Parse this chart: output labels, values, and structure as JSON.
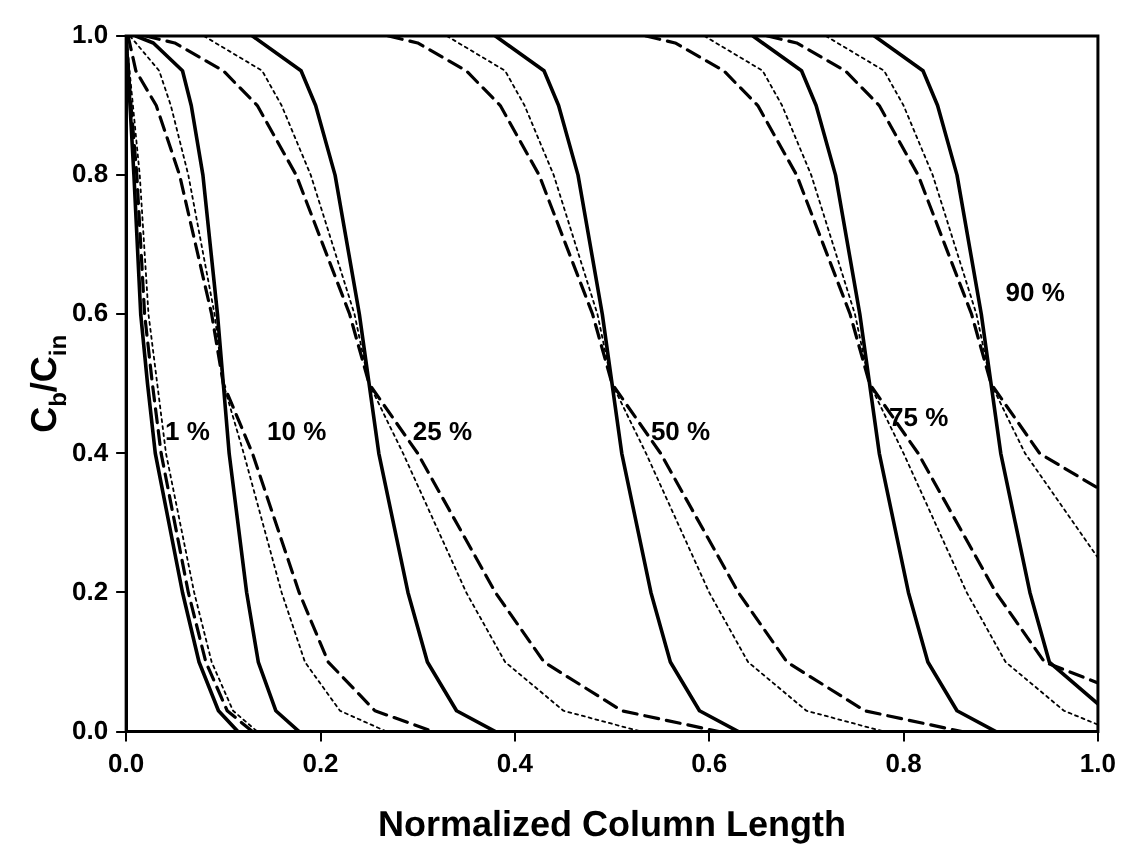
{
  "chart_data": {
    "type": "line",
    "xlabel": "Normalized Column Length",
    "ylabel": "C$_{b}$/C$_{in}$",
    "xlim": [
      0,
      1
    ],
    "ylim": [
      0,
      1
    ],
    "xticks": [
      {
        "value": 0,
        "label": "0.0"
      },
      {
        "value": 0.2,
        "label": "0.2"
      },
      {
        "value": 0.4,
        "label": "0.4"
      },
      {
        "value": 0.6,
        "label": "0.6"
      },
      {
        "value": 0.8,
        "label": "0.8"
      },
      {
        "value": 1,
        "label": "1.0"
      }
    ],
    "yticks": [
      {
        "value": 0,
        "label": "0.0"
      },
      {
        "value": 0.2,
        "label": "0.2"
      },
      {
        "value": 0.4,
        "label": "0.4"
      },
      {
        "value": 0.6,
        "label": "0.6"
      },
      {
        "value": 0.8,
        "label": "0.8"
      },
      {
        "value": 1,
        "label": "1.0"
      }
    ],
    "series": [
      {
        "color": "#000000",
        "line_style": "solid",
        "x": [
          0,
          0.004,
          0.008,
          0.015,
          0.022,
          0.03,
          0.058,
          0.075,
          0.095,
          0.115
        ],
        "values": [
          1,
          0.9,
          0.8,
          0.6,
          0.5,
          0.4,
          0.2,
          0.1,
          0.03,
          0
        ]
      },
      {
        "color": "#000000",
        "line_style": "dashed",
        "x": [
          0,
          0.005,
          0.011,
          0.019,
          0.027,
          0.036,
          0.064,
          0.082,
          0.104,
          0.13
        ],
        "values": [
          1,
          0.9,
          0.8,
          0.6,
          0.5,
          0.4,
          0.2,
          0.1,
          0.03,
          0
        ]
      },
      {
        "color": "#000000",
        "line_style": "dotted",
        "x": [
          0,
          0.007,
          0.014,
          0.023,
          0.032,
          0.041,
          0.07,
          0.088,
          0.11,
          0.135
        ],
        "values": [
          1,
          0.9,
          0.8,
          0.6,
          0.5,
          0.4,
          0.2,
          0.1,
          0.03,
          0
        ]
      },
      {
        "color": "#000000",
        "line_style": "solid",
        "x": [
          0.01,
          0.028,
          0.058,
          0.067,
          0.079,
          0.094,
          0.1,
          0.106,
          0.124,
          0.136,
          0.154,
          0.178
        ],
        "values": [
          1,
          0.99,
          0.95,
          0.9,
          0.8,
          0.6,
          0.5,
          0.4,
          0.2,
          0.1,
          0.03,
          0
        ]
      },
      {
        "color": "#000000",
        "line_style": "dashed",
        "x": [
          0.002,
          0.01,
          0.031,
          0.055,
          0.088,
          0.1,
          0.13,
          0.178,
          0.208,
          0.256,
          0.316
        ],
        "values": [
          1,
          0.95,
          0.9,
          0.8,
          0.6,
          0.5,
          0.4,
          0.2,
          0.1,
          0.03,
          0
        ]
      },
      {
        "color": "#000000",
        "line_style": "dotted",
        "x": [
          0.004,
          0.034,
          0.046,
          0.064,
          0.091,
          0.1,
          0.121,
          0.16,
          0.184,
          0.22,
          0.268
        ],
        "values": [
          1,
          0.95,
          0.9,
          0.8,
          0.6,
          0.5,
          0.4,
          0.2,
          0.1,
          0.03,
          0
        ]
      },
      {
        "color": "#000000",
        "line_style": "solid",
        "x": [
          0.13,
          0.18,
          0.195,
          0.215,
          0.24,
          0.25,
          0.26,
          0.29,
          0.31,
          0.34,
          0.38
        ],
        "values": [
          1,
          0.95,
          0.9,
          0.8,
          0.6,
          0.5,
          0.4,
          0.2,
          0.1,
          0.03,
          0
        ]
      },
      {
        "color": "#000000",
        "line_style": "dashed",
        "x": [
          0.02,
          0.05,
          0.1,
          0.135,
          0.175,
          0.23,
          0.25,
          0.3,
          0.38,
          0.43,
          0.51,
          0.61
        ],
        "values": [
          1,
          0.99,
          0.95,
          0.9,
          0.8,
          0.6,
          0.5,
          0.4,
          0.2,
          0.1,
          0.03,
          0
        ]
      },
      {
        "color": "#000000",
        "line_style": "dotted",
        "x": [
          0.08,
          0.14,
          0.16,
          0.19,
          0.235,
          0.25,
          0.285,
          0.35,
          0.39,
          0.45,
          0.53
        ],
        "values": [
          1,
          0.95,
          0.9,
          0.8,
          0.6,
          0.5,
          0.4,
          0.2,
          0.1,
          0.03,
          0
        ]
      },
      {
        "color": "#000000",
        "line_style": "solid",
        "x": [
          0.38,
          0.43,
          0.445,
          0.465,
          0.49,
          0.5,
          0.51,
          0.54,
          0.56,
          0.59,
          0.63
        ],
        "values": [
          1,
          0.95,
          0.9,
          0.8,
          0.6,
          0.5,
          0.4,
          0.2,
          0.1,
          0.03,
          0
        ]
      },
      {
        "color": "#000000",
        "line_style": "dashed",
        "x": [
          0.27,
          0.3,
          0.35,
          0.385,
          0.425,
          0.48,
          0.5,
          0.55,
          0.63,
          0.68,
          0.76,
          0.86
        ],
        "values": [
          1,
          0.99,
          0.95,
          0.9,
          0.8,
          0.6,
          0.5,
          0.4,
          0.2,
          0.1,
          0.03,
          0
        ]
      },
      {
        "color": "#000000",
        "line_style": "dotted",
        "x": [
          0.33,
          0.39,
          0.41,
          0.44,
          0.485,
          0.5,
          0.535,
          0.6,
          0.64,
          0.7,
          0.78
        ],
        "values": [
          1,
          0.95,
          0.9,
          0.8,
          0.6,
          0.5,
          0.4,
          0.2,
          0.1,
          0.03,
          0
        ]
      },
      {
        "color": "#000000",
        "line_style": "solid",
        "x": [
          0.645,
          0.695,
          0.71,
          0.73,
          0.755,
          0.765,
          0.775,
          0.805,
          0.825,
          0.855,
          0.895
        ],
        "values": [
          1,
          0.95,
          0.9,
          0.8,
          0.6,
          0.5,
          0.4,
          0.2,
          0.1,
          0.03,
          0
        ]
      },
      {
        "color": "#000000",
        "line_style": "dashed",
        "x": [
          0.535,
          0.565,
          0.615,
          0.65,
          0.69,
          0.745,
          0.765,
          0.815,
          0.895,
          0.945,
          1
        ],
        "values": [
          1,
          0.99,
          0.95,
          0.9,
          0.8,
          0.6,
          0.5,
          0.4,
          0.2,
          0.1,
          0.07
        ]
      },
      {
        "color": "#000000",
        "line_style": "dotted",
        "x": [
          0.595,
          0.655,
          0.675,
          0.705,
          0.75,
          0.765,
          0.8,
          0.865,
          0.905,
          0.965,
          1
        ],
        "values": [
          1,
          0.95,
          0.9,
          0.8,
          0.6,
          0.5,
          0.4,
          0.2,
          0.1,
          0.03,
          0.01
        ]
      },
      {
        "color": "#000000",
        "line_style": "solid",
        "x": [
          0.77,
          0.82,
          0.835,
          0.855,
          0.88,
          0.89,
          0.9,
          0.93,
          0.95,
          1
        ],
        "values": [
          1,
          0.95,
          0.9,
          0.8,
          0.6,
          0.5,
          0.4,
          0.2,
          0.1,
          0.04
        ]
      },
      {
        "color": "#000000",
        "line_style": "dashed",
        "x": [
          0.66,
          0.69,
          0.74,
          0.775,
          0.815,
          0.87,
          0.89,
          0.94,
          1
        ],
        "values": [
          1,
          0.99,
          0.95,
          0.9,
          0.8,
          0.6,
          0.5,
          0.4,
          0.35
        ]
      },
      {
        "color": "#000000",
        "line_style": "dotted",
        "x": [
          0.72,
          0.78,
          0.8,
          0.83,
          0.875,
          0.89,
          0.925,
          1
        ],
        "values": [
          1,
          0.95,
          0.9,
          0.8,
          0.6,
          0.5,
          0.4,
          0.25
        ]
      }
    ],
    "annotations": [
      "1 %",
      "10 %",
      "25 %",
      "50 %",
      "75 %",
      "90 %"
    ]
  }
}
